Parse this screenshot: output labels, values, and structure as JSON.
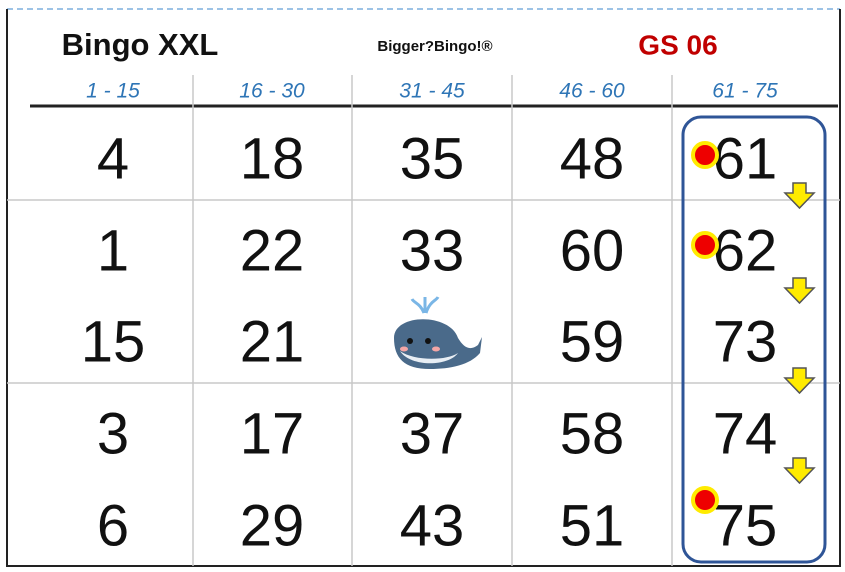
{
  "header": {
    "title": "Bingo XXL",
    "brand": "Bigger?Bingo!®",
    "code": "GS 06"
  },
  "columns": [
    "1 - 15",
    "16 - 30",
    "31 - 45",
    "46 - 60",
    "61 - 75"
  ],
  "rows": [
    [
      4,
      18,
      35,
      48,
      61
    ],
    [
      1,
      22,
      33,
      60,
      62
    ],
    [
      15,
      21,
      null,
      59,
      73
    ],
    [
      3,
      17,
      37,
      58,
      74
    ],
    [
      6,
      29,
      43,
      51,
      75
    ]
  ]
}
